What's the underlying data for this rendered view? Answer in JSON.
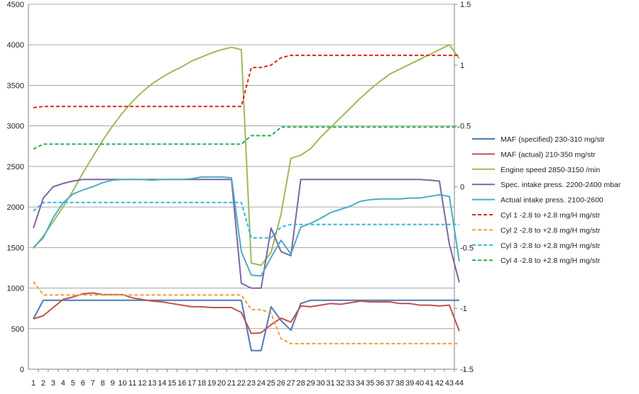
{
  "chart_data": {
    "type": "line",
    "x": [
      1,
      2,
      3,
      4,
      5,
      6,
      7,
      8,
      9,
      10,
      11,
      12,
      13,
      14,
      15,
      16,
      17,
      18,
      19,
      20,
      21,
      22,
      23,
      24,
      25,
      26,
      27,
      28,
      29,
      30,
      31,
      32,
      33,
      34,
      35,
      36,
      37,
      38,
      39,
      40,
      41,
      42,
      43,
      44
    ],
    "x_tick_labels": [
      "1",
      "2",
      "3",
      "4",
      "5",
      "6",
      "7",
      "8",
      "9",
      "10",
      "11",
      "12",
      "13",
      "14",
      "15",
      "16",
      "17",
      "18",
      "19",
      "20",
      "21",
      "22",
      "23",
      "24",
      "25",
      "26",
      "27",
      "28",
      "29",
      "30",
      "31",
      "32",
      "33",
      "34",
      "35",
      "36",
      "37",
      "38",
      "39",
      "40",
      "41",
      "42",
      "43",
      "44"
    ],
    "ylim_left": [
      0,
      4500
    ],
    "y_left_ticks": [
      "0",
      "500",
      "1000",
      "1500",
      "2000",
      "2500",
      "3000",
      "3500",
      "4000",
      "4500"
    ],
    "ylim_right": [
      -1.5,
      1.5
    ],
    "y_right_ticks": [
      "-1.5",
      "-1",
      "-0.5",
      "0",
      "0.5",
      "1",
      "1.5"
    ],
    "grid": "horizontal",
    "legend_position": "right",
    "series": [
      {
        "name": "MAF (specified) 230-310  mg/str",
        "color": "#4a7ab5",
        "dash": false,
        "axis": "left",
        "values": [
          620,
          850,
          850,
          850,
          850,
          850,
          850,
          850,
          850,
          850,
          850,
          850,
          850,
          850,
          850,
          850,
          850,
          850,
          850,
          850,
          850,
          850,
          230,
          230,
          770,
          600,
          480,
          810,
          850,
          850,
          850,
          850,
          850,
          850,
          850,
          850,
          850,
          850,
          850,
          850,
          850,
          850,
          850,
          850
        ]
      },
      {
        "name": "MAF (actual) 210-350  mg/str",
        "color": "#c0504d",
        "dash": false,
        "axis": "left",
        "values": [
          620,
          660,
          760,
          860,
          890,
          930,
          940,
          920,
          920,
          920,
          880,
          860,
          840,
          830,
          810,
          790,
          770,
          770,
          760,
          760,
          760,
          700,
          440,
          450,
          550,
          630,
          580,
          780,
          770,
          790,
          810,
          800,
          820,
          840,
          830,
          830,
          830,
          810,
          810,
          790,
          790,
          780,
          790,
          470
        ]
      },
      {
        "name": "Engine speed 2850-3150  /min",
        "color": "#9bbb59",
        "dash": false,
        "axis": "left",
        "values": [
          1490,
          1640,
          1820,
          2000,
          2200,
          2420,
          2620,
          2820,
          3000,
          3160,
          3300,
          3420,
          3520,
          3600,
          3670,
          3730,
          3800,
          3850,
          3900,
          3940,
          3970,
          3940,
          1310,
          1280,
          1440,
          1910,
          2600,
          2640,
          2720,
          2860,
          2980,
          3100,
          3220,
          3340,
          3450,
          3550,
          3640,
          3700,
          3760,
          3820,
          3880,
          3940,
          4000,
          3830
        ]
      },
      {
        "name": "Spec. intake press. 2200-2400  mbar",
        "color": "#8064a2",
        "dash": false,
        "axis": "left",
        "values": [
          1740,
          2110,
          2250,
          2290,
          2320,
          2340,
          2340,
          2340,
          2340,
          2340,
          2340,
          2340,
          2340,
          2340,
          2340,
          2340,
          2340,
          2340,
          2340,
          2340,
          2340,
          1060,
          1000,
          1000,
          1740,
          1450,
          1400,
          2340,
          2340,
          2340,
          2340,
          2340,
          2340,
          2340,
          2340,
          2340,
          2340,
          2340,
          2340,
          2340,
          2330,
          2320,
          1540,
          1070
        ]
      },
      {
        "name": "Actual intake press. 2100-2600",
        "color": "#4bacc6",
        "dash": false,
        "axis": "left",
        "values": [
          1500,
          1620,
          1870,
          2050,
          2160,
          2210,
          2250,
          2300,
          2330,
          2340,
          2340,
          2340,
          2330,
          2340,
          2340,
          2340,
          2350,
          2370,
          2370,
          2370,
          2360,
          1450,
          1160,
          1150,
          1380,
          1590,
          1420,
          1750,
          1800,
          1860,
          1930,
          1970,
          2010,
          2070,
          2090,
          2100,
          2100,
          2100,
          2110,
          2110,
          2130,
          2150,
          2130,
          1330
        ]
      },
      {
        "name": "Cyl 1 -2.8 to +2.8 mg/H  mg/str",
        "color": "#e3221d",
        "dash": true,
        "axis": "right",
        "values": [
          0.65,
          0.66,
          0.66,
          0.66,
          0.66,
          0.66,
          0.66,
          0.66,
          0.66,
          0.66,
          0.66,
          0.66,
          0.66,
          0.66,
          0.66,
          0.66,
          0.66,
          0.66,
          0.66,
          0.66,
          0.66,
          0.66,
          0.98,
          0.98,
          1.0,
          1.06,
          1.08,
          1.08,
          1.08,
          1.08,
          1.08,
          1.08,
          1.08,
          1.08,
          1.08,
          1.08,
          1.08,
          1.08,
          1.08,
          1.08,
          1.08,
          1.08,
          1.08,
          1.08
        ]
      },
      {
        "name": "Cyl 2 -2.8 to +2.8 mg/H  mg/str",
        "color": "#f29a3a",
        "dash": true,
        "axis": "right",
        "values": [
          -0.78,
          -0.89,
          -0.89,
          -0.89,
          -0.89,
          -0.89,
          -0.89,
          -0.89,
          -0.89,
          -0.89,
          -0.89,
          -0.89,
          -0.89,
          -0.89,
          -0.89,
          -0.89,
          -0.89,
          -0.89,
          -0.89,
          -0.89,
          -0.89,
          -0.89,
          -1.01,
          -1.01,
          -1.04,
          -1.25,
          -1.29,
          -1.29,
          -1.29,
          -1.29,
          -1.29,
          -1.29,
          -1.29,
          -1.29,
          -1.29,
          -1.29,
          -1.29,
          -1.29,
          -1.29,
          -1.29,
          -1.29,
          -1.29,
          -1.29,
          -1.29
        ]
      },
      {
        "name": "Cyl 3 -2.8 to +2.8 mg/H  mg/str",
        "color": "#32b7dc",
        "dash": true,
        "axis": "right",
        "values": [
          -0.2,
          -0.13,
          -0.13,
          -0.13,
          -0.13,
          -0.13,
          -0.13,
          -0.13,
          -0.13,
          -0.13,
          -0.13,
          -0.13,
          -0.13,
          -0.13,
          -0.13,
          -0.13,
          -0.13,
          -0.13,
          -0.13,
          -0.13,
          -0.13,
          -0.13,
          -0.42,
          -0.42,
          -0.42,
          -0.33,
          -0.31,
          -0.31,
          -0.31,
          -0.31,
          -0.31,
          -0.31,
          -0.31,
          -0.31,
          -0.31,
          -0.31,
          -0.31,
          -0.31,
          -0.31,
          -0.31,
          -0.31,
          -0.31,
          -0.31,
          -0.31
        ]
      },
      {
        "name": "Cyl 4 -2.8 to +2.8 mg/H  mg/str",
        "color": "#20b050",
        "dash": true,
        "axis": "right",
        "values": [
          0.31,
          0.35,
          0.35,
          0.35,
          0.35,
          0.35,
          0.35,
          0.35,
          0.35,
          0.35,
          0.35,
          0.35,
          0.35,
          0.35,
          0.35,
          0.35,
          0.35,
          0.35,
          0.35,
          0.35,
          0.35,
          0.35,
          0.42,
          0.42,
          0.42,
          0.49,
          0.49,
          0.49,
          0.49,
          0.49,
          0.49,
          0.49,
          0.49,
          0.49,
          0.49,
          0.49,
          0.49,
          0.49,
          0.49,
          0.49,
          0.49,
          0.49,
          0.49,
          0.49
        ]
      }
    ]
  }
}
